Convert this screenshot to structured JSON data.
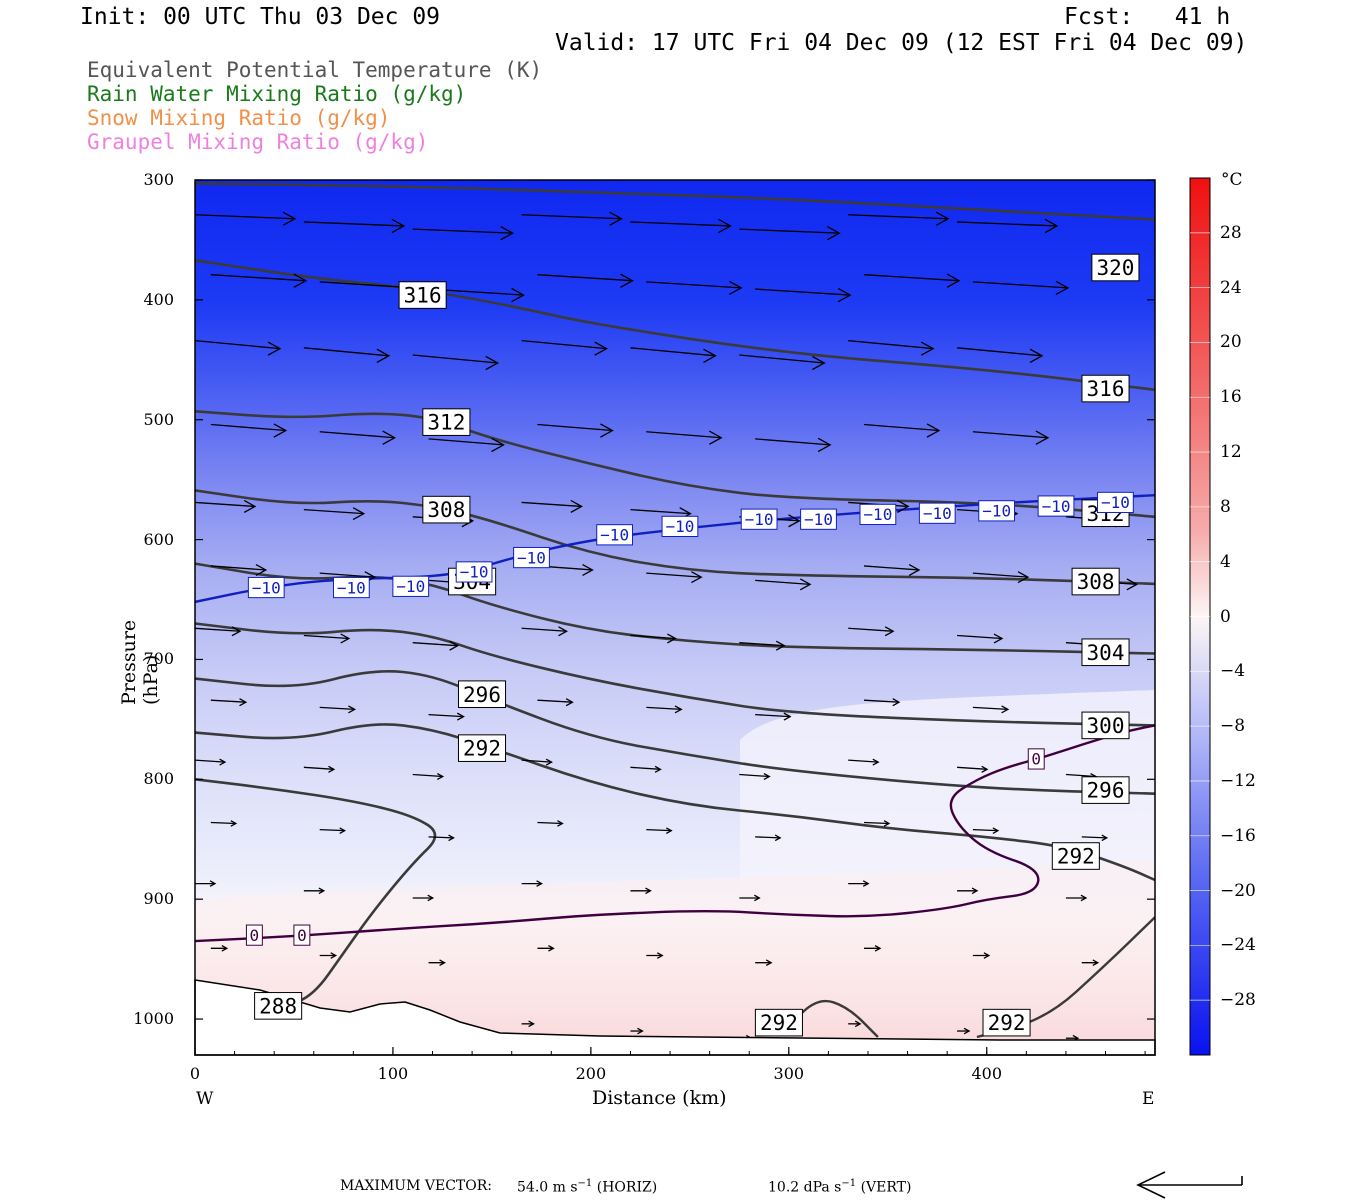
{
  "header": {
    "init": "Init: 00 UTC Thu 03 Dec 09",
    "fcst": "Fcst:   41 h",
    "valid": "Valid: 17 UTC Fri 04 Dec 09 (12 EST Fri 04 Dec 09)"
  },
  "legend": [
    {
      "label": "Equivalent Potential Temperature (K)",
      "color": "#555555"
    },
    {
      "label": "Rain Water Mixing Ratio (g/kg)",
      "color": "#1a7a1a"
    },
    {
      "label": "Snow Mixing Ratio (g/kg)",
      "color": "#f0904a"
    },
    {
      "label": "Graupel Mixing Ratio (g/kg)",
      "color": "#f080e0"
    }
  ],
  "chart_data": {
    "type": "cross-section",
    "xlabel": "Distance (km)",
    "ylabel": "Pressure (hPa)",
    "xlim": [
      0,
      485
    ],
    "ylim": [
      1030,
      300
    ],
    "x_ticks": [
      0,
      100,
      200,
      300,
      400
    ],
    "x_tick_labels": [
      "0",
      "100",
      "200",
      "300",
      "400"
    ],
    "y_ticks": [
      300,
      400,
      500,
      600,
      700,
      800,
      900,
      1000
    ],
    "y_tick_labels": [
      "300",
      "400",
      "500",
      "600",
      "700",
      "800",
      "900",
      "1000"
    ],
    "x_end_labels": {
      "left": "W",
      "right": "E"
    },
    "colorbar": {
      "unit": "°C",
      "tick_values": [
        28,
        24,
        20,
        16,
        12,
        8,
        4,
        0,
        -4,
        -8,
        -12,
        -16,
        -20,
        -24,
        -28
      ],
      "tick_labels": [
        "28",
        "24",
        "20",
        "16",
        "12",
        "8",
        "4",
        "0",
        "−4",
        "−8",
        "−12",
        "−16",
        "−20",
        "−24",
        "−28"
      ],
      "range": [
        -32,
        32
      ]
    },
    "theta_e_contours": [
      {
        "label": "320",
        "points": [
          [
            0,
            303
          ],
          [
            100,
            305
          ],
          [
            200,
            310
          ],
          [
            300,
            316
          ],
          [
            400,
            325
          ],
          [
            485,
            333
          ]
        ],
        "label_at": [
          465,
          373
        ]
      },
      {
        "label": "316",
        "points": [
          [
            0,
            367
          ],
          [
            60,
            382
          ],
          [
            110,
            390
          ],
          [
            160,
            405
          ],
          [
            200,
            420
          ],
          [
            300,
            445
          ],
          [
            400,
            458
          ],
          [
            485,
            475
          ]
        ],
        "label_at": [
          115,
          396
        ],
        "label_at2": [
          460,
          474
        ]
      },
      {
        "label": "312",
        "points": [
          [
            0,
            493
          ],
          [
            50,
            499
          ],
          [
            90,
            494
          ],
          [
            120,
            498
          ],
          [
            150,
            516
          ],
          [
            200,
            537
          ],
          [
            250,
            556
          ],
          [
            300,
            566
          ],
          [
            400,
            569
          ],
          [
            485,
            581
          ]
        ],
        "label_at": [
          127,
          502
        ],
        "label_at2": [
          460,
          578
        ]
      },
      {
        "label": "308",
        "points": [
          [
            0,
            559
          ],
          [
            50,
            571
          ],
          [
            90,
            567
          ],
          [
            120,
            572
          ],
          [
            150,
            584
          ],
          [
            200,
            612
          ],
          [
            250,
            626
          ],
          [
            300,
            630
          ],
          [
            400,
            632
          ],
          [
            485,
            637
          ]
        ],
        "label_at": [
          127,
          575
        ],
        "label_at2": [
          455,
          635
        ]
      },
      {
        "label": "304",
        "points": [
          [
            0,
            620
          ],
          [
            50,
            634
          ],
          [
            90,
            630
          ],
          [
            120,
            637
          ],
          [
            150,
            655
          ],
          [
            200,
            676
          ],
          [
            250,
            685
          ],
          [
            300,
            690
          ],
          [
            400,
            692
          ],
          [
            485,
            695
          ]
        ],
        "label_at": [
          140,
          635
        ],
        "label_at2": [
          460,
          694
        ]
      },
      {
        "label": "300",
        "points": [
          [
            0,
            670
          ],
          [
            50,
            680
          ],
          [
            90,
            674
          ],
          [
            120,
            680
          ],
          [
            150,
            697
          ],
          [
            200,
            717
          ],
          [
            250,
            732
          ],
          [
            300,
            745
          ],
          [
            400,
            752
          ],
          [
            485,
            755
          ]
        ],
        "label_at": [
          460,
          755
        ]
      },
      {
        "label": "296",
        "points": [
          [
            0,
            716
          ],
          [
            50,
            725
          ],
          [
            90,
            708
          ],
          [
            120,
            713
          ],
          [
            150,
            734
          ],
          [
            200,
            765
          ],
          [
            250,
            780
          ],
          [
            300,
            793
          ],
          [
            400,
            808
          ],
          [
            485,
            812
          ]
        ],
        "label_at": [
          145,
          729
        ],
        "label_at2": [
          460,
          809
        ]
      },
      {
        "label": "292",
        "points": [
          [
            0,
            761
          ],
          [
            50,
            768
          ],
          [
            90,
            752
          ],
          [
            120,
            758
          ],
          [
            150,
            774
          ],
          [
            200,
            803
          ],
          [
            250,
            822
          ],
          [
            300,
            830
          ],
          [
            350,
            841
          ],
          [
            400,
            848
          ],
          [
            440,
            856
          ],
          [
            470,
            873
          ],
          [
            485,
            884
          ]
        ],
        "label_at": [
          145,
          774
        ],
        "label_at2": [
          445,
          864
        ]
      },
      {
        "label": "288",
        "points": [
          [
            0,
            800
          ],
          [
            40,
            808
          ],
          [
            80,
            818
          ],
          [
            110,
            830
          ],
          [
            125,
            846
          ],
          [
            110,
            870
          ],
          [
            90,
            910
          ],
          [
            75,
            945
          ],
          [
            60,
            980
          ],
          [
            45,
            990
          ]
        ],
        "label_at": [
          42,
          989
        ]
      }
    ],
    "temperature_contours": [
      {
        "label": "−10",
        "color": "#1020c0",
        "points": [
          [
            0,
            652
          ],
          [
            35,
            640
          ],
          [
            70,
            633
          ],
          [
            130,
            631
          ],
          [
            160,
            615
          ],
          [
            200,
            600
          ],
          [
            250,
            590
          ],
          [
            300,
            582
          ],
          [
            400,
            570
          ],
          [
            485,
            563
          ]
        ],
        "label_positions": [
          [
            36,
            640
          ],
          [
            79,
            640
          ],
          [
            109,
            639
          ],
          [
            141,
            627
          ],
          [
            170,
            615
          ],
          [
            212,
            596
          ],
          [
            245,
            589
          ],
          [
            285,
            583
          ],
          [
            315,
            583
          ],
          [
            345,
            579
          ],
          [
            375,
            578
          ],
          [
            405,
            576
          ],
          [
            435,
            572
          ],
          [
            465,
            569
          ]
        ]
      },
      {
        "label": "0",
        "color": "#400040",
        "points": [
          [
            0,
            935
          ],
          [
            50,
            931
          ],
          [
            100,
            925
          ],
          [
            150,
            920
          ],
          [
            200,
            913
          ],
          [
            260,
            909
          ],
          [
            300,
            913
          ],
          [
            340,
            915
          ],
          [
            380,
            908
          ],
          [
            400,
            900
          ],
          [
            425,
            895
          ],
          [
            427,
            875
          ],
          [
            400,
            860
          ],
          [
            385,
            838
          ],
          [
            380,
            816
          ],
          [
            395,
            800
          ],
          [
            410,
            790
          ],
          [
            430,
            781
          ],
          [
            450,
            770
          ],
          [
            470,
            760
          ],
          [
            485,
            755
          ]
        ],
        "label_positions": [
          [
            30,
            930
          ],
          [
            54,
            930
          ],
          [
            425,
            783
          ]
        ]
      }
    ],
    "footer": {
      "label": "MAXIMUM VECTOR:",
      "horiz": "54.0 m s",
      "horiz_unit": "(HORIZ)",
      "vert": "10.2 dPa s",
      "vert_unit": "(VERT)",
      "exp": "−1"
    }
  }
}
